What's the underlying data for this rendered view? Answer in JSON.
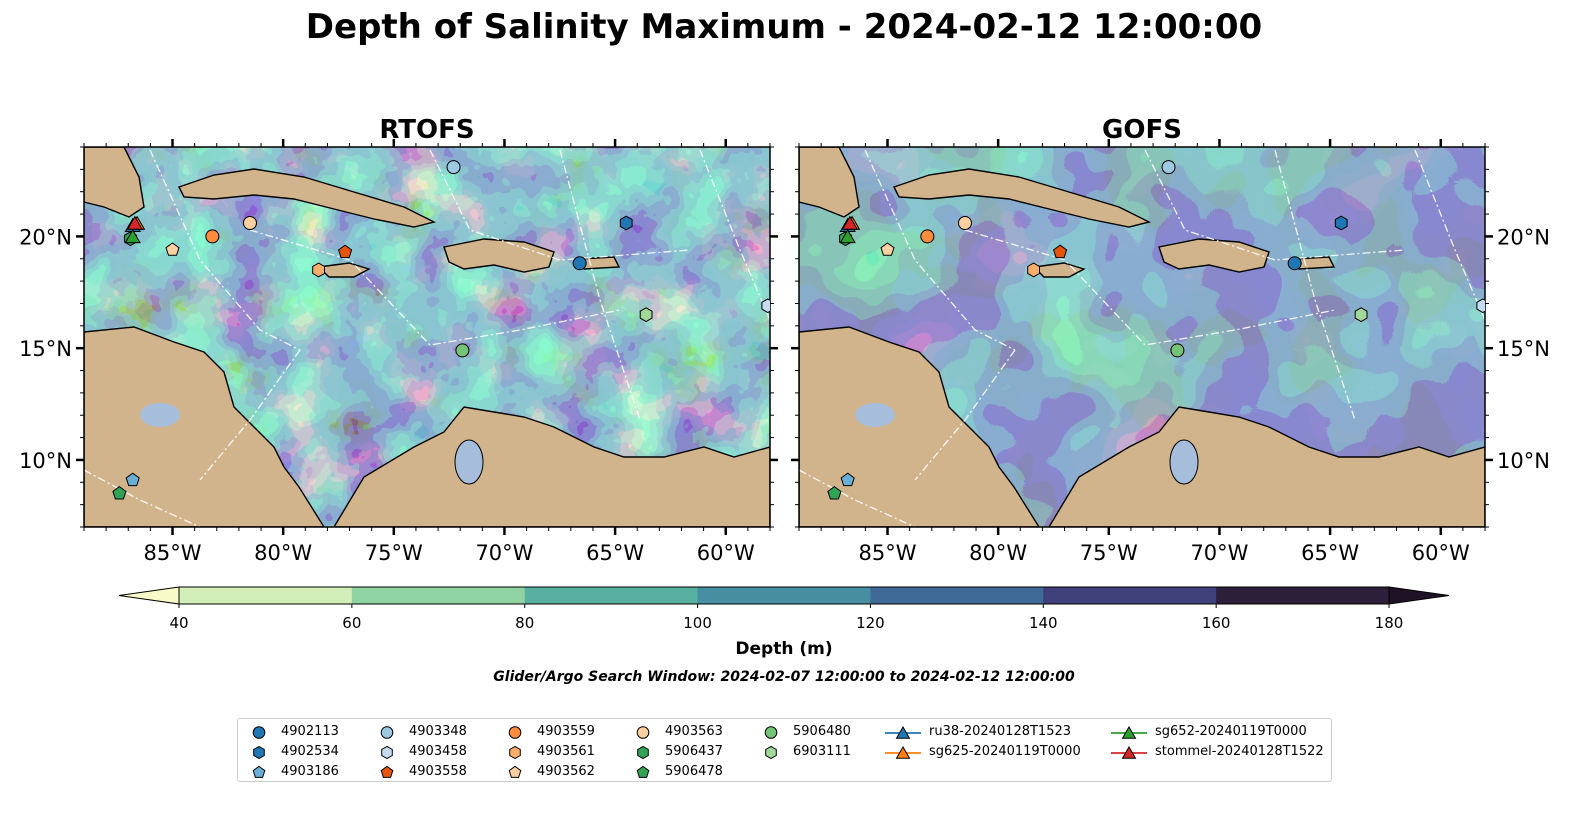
{
  "figure": {
    "title": "Depth of Salinity Maximum - 2024-02-12 12:00:00",
    "search_window": "Glider/Argo Search Window: 2024-02-07 12:00:00 to 2024-02-12 12:00:00"
  },
  "colors": {
    "land": "#d2b48c",
    "lakes": "#a6bddb",
    "rivers": "#a6bddb",
    "eez_lines": "#ffffff",
    "coastline": "#000000",
    "colormap": [
      "#f7fbc7",
      "#d3efb9",
      "#8fd3a2",
      "#57b0a0",
      "#468ea0",
      "#3f6a97",
      "#3f407a",
      "#2c1f39",
      "#1f1225"
    ]
  },
  "chart_data": [
    {
      "type": "heatmap",
      "title": "RTOFS",
      "map_extent": {
        "lon": [
          -89,
          -58
        ],
        "lat": [
          7,
          24
        ]
      },
      "xticks": [
        "85°W",
        "80°W",
        "75°W",
        "70°W",
        "65°W",
        "60°W"
      ],
      "xtick_values": [
        -85,
        -80,
        -75,
        -70,
        -65,
        -60
      ],
      "yticks": [
        "20°N",
        "15°N",
        "10°N"
      ],
      "ytick_values": [
        20,
        15,
        10
      ],
      "ytick_side": "left",
      "field": "depth of salinity maximum (m)",
      "dominant_depth_m": 150
    },
    {
      "type": "heatmap",
      "title": "GOFS",
      "map_extent": {
        "lon": [
          -89,
          -58
        ],
        "lat": [
          7,
          24
        ]
      },
      "xticks": [
        "85°W",
        "80°W",
        "75°W",
        "70°W",
        "65°W",
        "60°W"
      ],
      "xtick_values": [
        -85,
        -80,
        -75,
        -70,
        -65,
        -60
      ],
      "yticks": [
        "20°N",
        "15°N",
        "10°N"
      ],
      "ytick_values": [
        20,
        15,
        10
      ],
      "ytick_side": "right",
      "field": "depth of salinity maximum (m)",
      "dominant_depth_m": 135
    }
  ],
  "colorbar": {
    "label": "Depth (m)",
    "levels": [
      40,
      60,
      80,
      100,
      120,
      140,
      160,
      180
    ],
    "tick_labels": [
      "40",
      "60",
      "80",
      "100",
      "120",
      "140",
      "160",
      "180"
    ],
    "extend": "both"
  },
  "markers": [
    {
      "id": "4902113",
      "type": "argo",
      "marker": "circle",
      "color": "#1f77b4",
      "lon": -66.6,
      "lat": 18.8
    },
    {
      "id": "4902534",
      "type": "argo",
      "marker": "hexagon",
      "color": "#1f77b4",
      "lon": -64.5,
      "lat": 20.6
    },
    {
      "id": "4903186",
      "type": "argo",
      "marker": "pentagon",
      "color": "#6baed6",
      "lon": -86.8,
      "lat": 9.1
    },
    {
      "id": "4903348",
      "type": "argo",
      "marker": "circle",
      "color": "#9ecae1",
      "lon": -72.3,
      "lat": 23.1
    },
    {
      "id": "4903458",
      "type": "argo",
      "marker": "hexagon",
      "color": "#c6dbef",
      "lon": -58.1,
      "lat": 16.9
    },
    {
      "id": "4903558",
      "type": "argo",
      "marker": "pentagon",
      "color": "#e6550d",
      "lon": -77.2,
      "lat": 19.3
    },
    {
      "id": "4903559",
      "type": "argo",
      "marker": "circle",
      "color": "#fd8d3c",
      "lon": -83.2,
      "lat": 20.0
    },
    {
      "id": "4903561",
      "type": "argo",
      "marker": "hexagon",
      "color": "#fdae6b",
      "lon": -78.4,
      "lat": 18.5
    },
    {
      "id": "4903562",
      "type": "argo",
      "marker": "pentagon",
      "color": "#fdd0a2",
      "lon": -85.0,
      "lat": 19.4
    },
    {
      "id": "4903563",
      "type": "argo",
      "marker": "circle",
      "color": "#fdd0a2",
      "lon": -81.5,
      "lat": 20.6
    },
    {
      "id": "5906437",
      "type": "argo",
      "marker": "hexagon",
      "color": "#31a354",
      "lon": -86.9,
      "lat": 19.9
    },
    {
      "id": "5906478",
      "type": "argo",
      "marker": "pentagon",
      "color": "#31a354",
      "lon": -87.4,
      "lat": 8.5
    },
    {
      "id": "5906480",
      "type": "argo",
      "marker": "circle",
      "color": "#74c476",
      "lon": -71.9,
      "lat": 14.9
    },
    {
      "id": "6903111",
      "type": "argo",
      "marker": "hexagon",
      "color": "#a1d99b",
      "lon": -63.6,
      "lat": 16.5
    },
    {
      "id": "ru38-20240128T1523",
      "type": "glider",
      "marker": "triangle",
      "color": "#1f77b4",
      "lon": -86.8,
      "lat": 20.5
    },
    {
      "id": "sg625-20240119T0000",
      "type": "glider",
      "marker": "triangle",
      "color": "#ff7f0e",
      "lon": -86.6,
      "lat": 20.6
    },
    {
      "id": "sg652-20240119T0000",
      "type": "glider",
      "marker": "triangle",
      "color": "#2ca02c",
      "lon": -86.8,
      "lat": 20.0
    },
    {
      "id": "stommel-20240128T1522",
      "type": "glider",
      "marker": "triangle",
      "color": "#d62728",
      "lon": -86.7,
      "lat": 20.6
    }
  ]
}
